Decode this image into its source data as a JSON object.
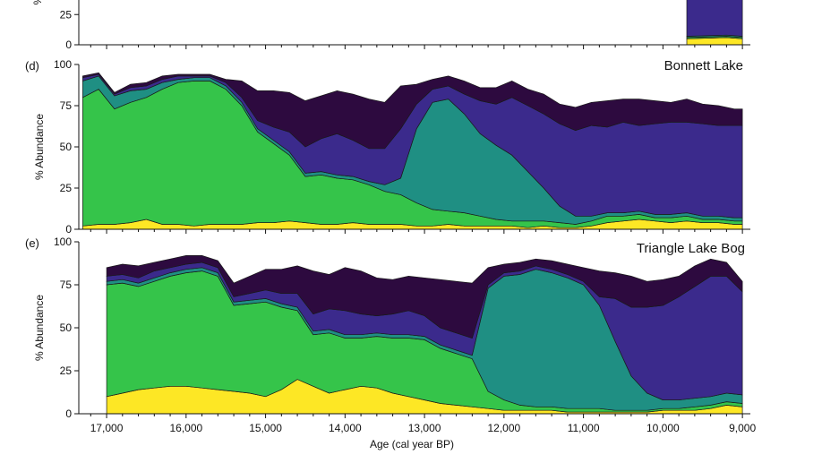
{
  "chart_data": [
    {
      "type": "area",
      "stacked": true,
      "panel_label": "",
      "title": "",
      "ylabel": "%",
      "ylim": [
        0,
        100
      ],
      "y_ticks": [
        "0",
        "25"
      ],
      "x": [
        9700,
        9200,
        9000
      ],
      "series": [
        {
          "color": "#fde725",
          "values": [
            5,
            6,
            5
          ]
        },
        {
          "color": "#35c44a",
          "values": [
            1,
            1,
            1
          ]
        },
        {
          "color": "#1f8f83",
          "values": [
            1,
            1,
            1
          ]
        },
        {
          "color": "#3b2a8c",
          "values": [
            60,
            60,
            60
          ]
        },
        {
          "color": "#2d0a3f",
          "values": [
            10,
            10,
            10
          ]
        }
      ]
    },
    {
      "type": "area",
      "stacked": true,
      "panel_label": "(d)",
      "title": "Bonnett Lake",
      "ylabel": "% Abundance",
      "ylim": [
        0,
        100
      ],
      "y_ticks": [
        "0",
        "25",
        "50",
        "75",
        "100"
      ],
      "x": [
        17300,
        17100,
        16900,
        16700,
        16500,
        16300,
        16100,
        15900,
        15700,
        15500,
        15300,
        15100,
        14900,
        14700,
        14500,
        14300,
        14100,
        13900,
        13700,
        13500,
        13300,
        13100,
        12900,
        12700,
        12500,
        12300,
        12100,
        11900,
        11700,
        11500,
        11300,
        11100,
        10900,
        10700,
        10500,
        10300,
        10100,
        9900,
        9700,
        9500,
        9300,
        9100,
        9000
      ],
      "series": [
        {
          "name": "",
          "color": "#fde725",
          "values": [
            2,
            3,
            3,
            4,
            6,
            3,
            3,
            2,
            3,
            3,
            3,
            4,
            4,
            5,
            4,
            3,
            3,
            4,
            3,
            3,
            3,
            2,
            2,
            3,
            2,
            2,
            2,
            2,
            1,
            2,
            1,
            1,
            2,
            4,
            5,
            6,
            5,
            4,
            5,
            4,
            4,
            3,
            3
          ]
        },
        {
          "name": "",
          "color": "#35c44a",
          "values": [
            78,
            82,
            70,
            73,
            74,
            82,
            86,
            88,
            87,
            82,
            72,
            55,
            48,
            40,
            28,
            30,
            28,
            26,
            24,
            20,
            18,
            14,
            10,
            8,
            8,
            6,
            4,
            3,
            4,
            3,
            3,
            2,
            3,
            4,
            3,
            3,
            2,
            3,
            3,
            2,
            2,
            2,
            2
          ]
        },
        {
          "name": "",
          "color": "#1f8f83",
          "values": [
            10,
            8,
            8,
            7,
            5,
            4,
            2,
            2,
            2,
            2,
            2,
            2,
            2,
            2,
            2,
            2,
            2,
            2,
            2,
            4,
            10,
            45,
            65,
            68,
            60,
            50,
            45,
            40,
            30,
            20,
            10,
            5,
            3,
            2,
            2,
            2,
            2,
            2,
            2,
            2,
            2,
            2,
            2
          ]
        },
        {
          "name": "",
          "color": "#3b2a8c",
          "values": [
            2,
            1,
            1,
            2,
            2,
            2,
            2,
            1,
            1,
            2,
            3,
            5,
            8,
            12,
            16,
            20,
            25,
            22,
            20,
            22,
            30,
            15,
            8,
            8,
            12,
            20,
            25,
            35,
            40,
            45,
            50,
            52,
            55,
            52,
            55,
            52,
            55,
            56,
            55,
            56,
            55,
            56,
            56
          ]
        },
        {
          "name": "",
          "color": "#2d0a3f",
          "values": [
            1,
            1,
            1,
            2,
            2,
            2,
            1,
            1,
            1,
            2,
            10,
            18,
            22,
            24,
            28,
            26,
            26,
            28,
            30,
            28,
            26,
            12,
            6,
            6,
            8,
            8,
            10,
            10,
            10,
            12,
            12,
            14,
            14,
            16,
            14,
            16,
            14,
            12,
            14,
            12,
            12,
            10,
            10
          ]
        }
      ]
    },
    {
      "type": "area",
      "stacked": true,
      "panel_label": "(e)",
      "title": "Triangle Lake Bog",
      "ylabel": "% Abundance",
      "ylim": [
        0,
        100
      ],
      "y_ticks": [
        "0",
        "25",
        "50",
        "75",
        "100"
      ],
      "xlabel": "Age (cal year BP)",
      "x_ticks": [
        "17,000",
        "16,000",
        "15,000",
        "14,000",
        "13,000",
        "12,000",
        "11,000",
        "10,000",
        "9,000"
      ],
      "x_tick_values": [
        17000,
        16000,
        15000,
        14000,
        13000,
        12000,
        11000,
        10000,
        9000
      ],
      "xlim": [
        17350,
        8900
      ],
      "x": [
        17000,
        16800,
        16600,
        16400,
        16200,
        16000,
        15800,
        15600,
        15400,
        15200,
        15000,
        14800,
        14600,
        14400,
        14200,
        14000,
        13800,
        13600,
        13400,
        13200,
        13000,
        12800,
        12600,
        12400,
        12200,
        12000,
        11800,
        11600,
        11400,
        11200,
        11000,
        10800,
        10600,
        10400,
        10200,
        10000,
        9800,
        9600,
        9400,
        9200,
        9000
      ],
      "series": [
        {
          "name": "",
          "color": "#fde725",
          "values": [
            10,
            12,
            14,
            15,
            16,
            16,
            15,
            14,
            13,
            12,
            10,
            14,
            20,
            16,
            12,
            14,
            16,
            15,
            12,
            10,
            8,
            6,
            5,
            4,
            3,
            2,
            2,
            2,
            2,
            1,
            1,
            1,
            1,
            1,
            1,
            2,
            2,
            2,
            3,
            5,
            4
          ]
        },
        {
          "name": "",
          "color": "#35c44a",
          "values": [
            65,
            64,
            60,
            62,
            64,
            66,
            68,
            66,
            50,
            52,
            55,
            48,
            40,
            30,
            35,
            30,
            28,
            30,
            32,
            34,
            35,
            32,
            30,
            28,
            10,
            6,
            3,
            2,
            2,
            2,
            2,
            2,
            1,
            1,
            1,
            1,
            1,
            2,
            2,
            2,
            2
          ]
        },
        {
          "name": "",
          "color": "#1f8f83",
          "values": [
            2,
            2,
            2,
            2,
            2,
            2,
            2,
            2,
            2,
            2,
            2,
            2,
            2,
            2,
            2,
            2,
            2,
            2,
            2,
            2,
            2,
            2,
            2,
            2,
            60,
            72,
            76,
            80,
            78,
            76,
            72,
            60,
            40,
            20,
            10,
            5,
            5,
            5,
            5,
            5,
            5
          ]
        },
        {
          "name": "",
          "color": "#3b2a8c",
          "values": [
            3,
            3,
            3,
            4,
            3,
            3,
            3,
            3,
            3,
            4,
            5,
            6,
            8,
            10,
            12,
            14,
            12,
            10,
            12,
            14,
            12,
            10,
            10,
            10,
            2,
            2,
            2,
            2,
            2,
            2,
            2,
            5,
            25,
            40,
            50,
            55,
            60,
            65,
            70,
            68,
            60
          ]
        },
        {
          "name": "",
          "color": "#2d0a3f",
          "values": [
            5,
            6,
            7,
            5,
            5,
            5,
            4,
            4,
            8,
            10,
            12,
            14,
            16,
            25,
            20,
            25,
            25,
            22,
            20,
            20,
            22,
            28,
            30,
            32,
            10,
            5,
            5,
            4,
            5,
            6,
            8,
            15,
            15,
            18,
            15,
            15,
            12,
            12,
            10,
            8,
            6
          ]
        }
      ]
    }
  ]
}
